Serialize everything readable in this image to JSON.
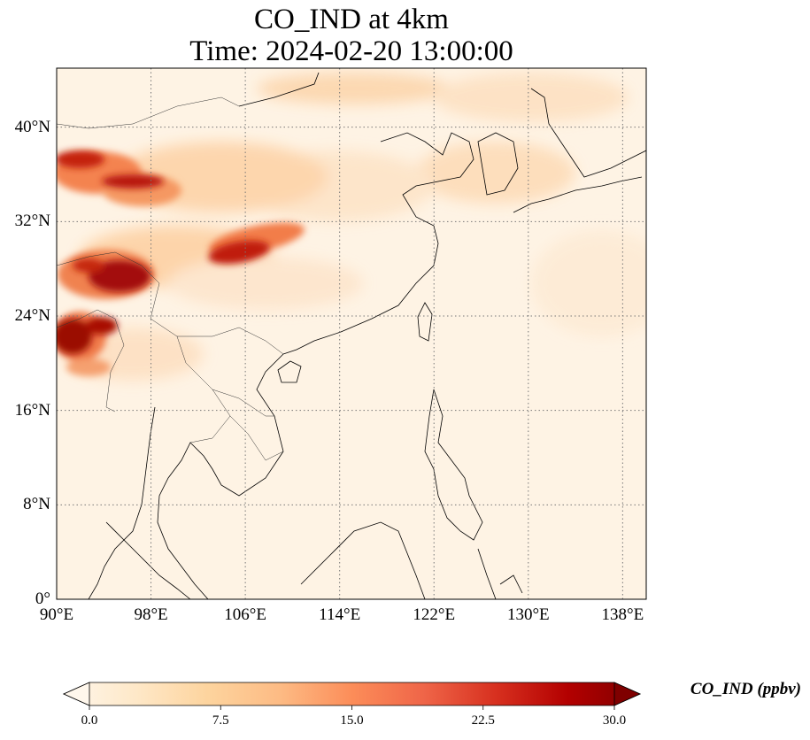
{
  "title": {
    "line1": "CO_IND at 4km",
    "line2": "Time: 2024-02-20 13:00:00"
  },
  "map": {
    "lon_range": [
      90,
      140
    ],
    "lat_range": [
      0,
      45
    ],
    "x_ticks": [
      "90°E",
      "98°E",
      "106°E",
      "114°E",
      "122°E",
      "130°E",
      "138°E"
    ],
    "x_tick_values": [
      90,
      98,
      106,
      114,
      122,
      130,
      138
    ],
    "y_ticks": [
      "0°",
      "8°N",
      "16°N",
      "24°N",
      "32°N",
      "40°N"
    ],
    "y_tick_values": [
      0,
      8,
      16,
      24,
      32,
      40
    ],
    "gridlines": true,
    "gridline_style": "dotted",
    "high_value_regions": [
      {
        "lon": 95.5,
        "lat": 27.5,
        "level": "high"
      },
      {
        "lon": 91.0,
        "lat": 22.0,
        "level": "high"
      },
      {
        "lon": 96.0,
        "lat": 35.5,
        "level": "high"
      },
      {
        "lon": 105.5,
        "lat": 29.5,
        "level": "high"
      }
    ]
  },
  "colorbar": {
    "label": "CO_IND (ppbv)",
    "min": 0.0,
    "max": 30.0,
    "ticks": [
      "0.0",
      "7.5",
      "15.0",
      "22.5",
      "30.0"
    ],
    "tick_values": [
      0.0,
      7.5,
      15.0,
      22.5,
      30.0
    ],
    "extend": "both",
    "colors": [
      "#fff7ec",
      "#fee8c8",
      "#fdd49e",
      "#fdbb84",
      "#fc8d59",
      "#ef6548",
      "#d7301f",
      "#b30000",
      "#7f0000"
    ]
  }
}
